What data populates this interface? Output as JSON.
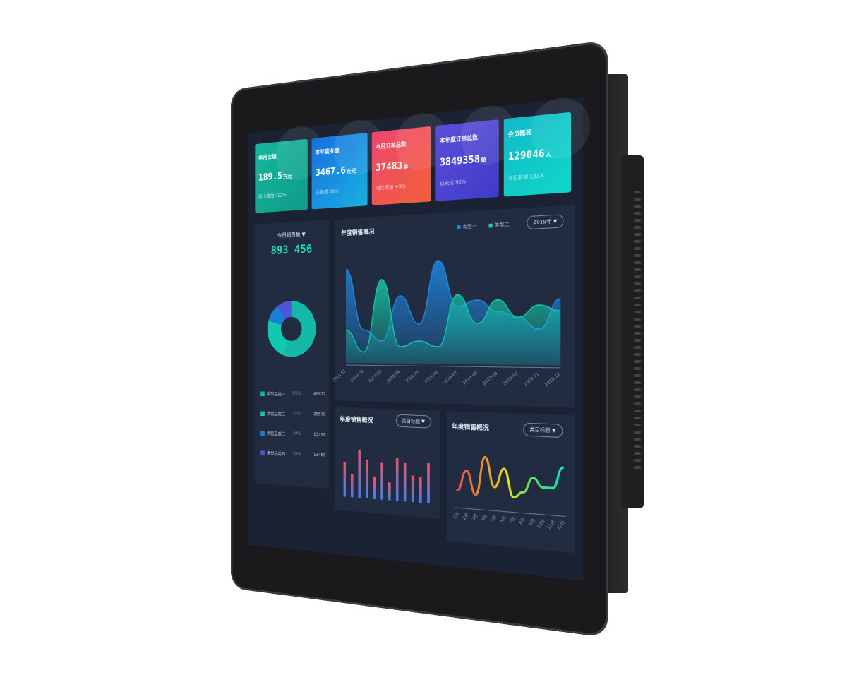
{
  "cards": [
    {
      "title": "本月业绩",
      "value": "189.5",
      "unit": "万元",
      "sub": "同比增加+12%",
      "from": "#14b89a",
      "to": "#0f9a8a"
    },
    {
      "title": "本年度业绩",
      "value": "3467.6",
      "unit": "万元",
      "sub": "已完成 89%",
      "from": "#1a6fe0",
      "to": "#17b0e0"
    },
    {
      "title": "本月订单总数",
      "value": "37483",
      "unit": "单",
      "sub": "同比增加 +9%",
      "from": "#f0466e",
      "to": "#f0603a"
    },
    {
      "title": "本年度订单总数",
      "value": "3849358",
      "unit": "单",
      "sub": "已完成 90%",
      "from": "#5a4fd8",
      "to": "#3f3bc8"
    },
    {
      "title": "会员概况",
      "value": "129046",
      "unit": "人",
      "sub": "今日新增 123人",
      "from": "#12b8c8",
      "to": "#0fd8c8"
    }
  ],
  "today": {
    "label": "今日销售额 ▼",
    "value": "893 456"
  },
  "donut": {
    "items": [
      {
        "label": "类型品类一",
        "pct": "55%",
        "count": "45672",
        "value": 55,
        "color": "#14b8a6"
      },
      {
        "label": "类型品类二",
        "pct": "25%",
        "count": "25678",
        "value": 25,
        "color": "#12c9b0"
      },
      {
        "label": "类型品类三",
        "pct": "10%",
        "count": "13456",
        "value": 10,
        "color": "#1a7fd6"
      },
      {
        "label": "类型品类四",
        "pct": "10%",
        "count": "13456",
        "value": 10,
        "color": "#4d56d8"
      }
    ]
  },
  "main_chart": {
    "title": "年度销售概况",
    "year_select": "2019年 ▼",
    "legend": [
      "类型一",
      "类型二"
    ],
    "chart_data": {
      "type": "area",
      "categories": [
        "2019-01",
        "2019-02",
        "2019-03",
        "2019-04",
        "2019-05",
        "2019-06",
        "2019-07",
        "2019-08",
        "2019-09",
        "2019-10",
        "2019-11",
        "2019-12"
      ],
      "series": [
        {
          "name": "类型一",
          "color": "#1e88e5",
          "values": [
            85,
            30,
            20,
            60,
            35,
            90,
            50,
            55,
            45,
            40,
            30,
            55
          ]
        },
        {
          "name": "类型二",
          "color": "#14c8a8",
          "values": [
            30,
            10,
            75,
            15,
            20,
            15,
            60,
            35,
            55,
            40,
            50,
            45
          ]
        }
      ],
      "ylim": [
        0,
        100
      ]
    }
  },
  "bar_chart": {
    "title": "年度销售概况",
    "select": "类目标题 ▼",
    "chart_data": {
      "type": "bar",
      "values": [
        60,
        40,
        82,
        66,
        38,
        62,
        30,
        72,
        64,
        44,
        42,
        66
      ],
      "ylim": [
        0,
        100
      ]
    }
  },
  "line_chart": {
    "title": "年度销售概况",
    "select": "类目标题 ▼",
    "chart_data": {
      "type": "line",
      "categories": [
        "1月",
        "2月",
        "3月",
        "4月",
        "5月",
        "6月",
        "7月",
        "8月",
        "9月",
        "10月",
        "11月",
        "12月"
      ],
      "values": [
        20,
        55,
        15,
        80,
        30,
        62,
        15,
        25,
        50,
        35,
        35,
        70
      ],
      "ylim": [
        0,
        100
      ]
    }
  }
}
